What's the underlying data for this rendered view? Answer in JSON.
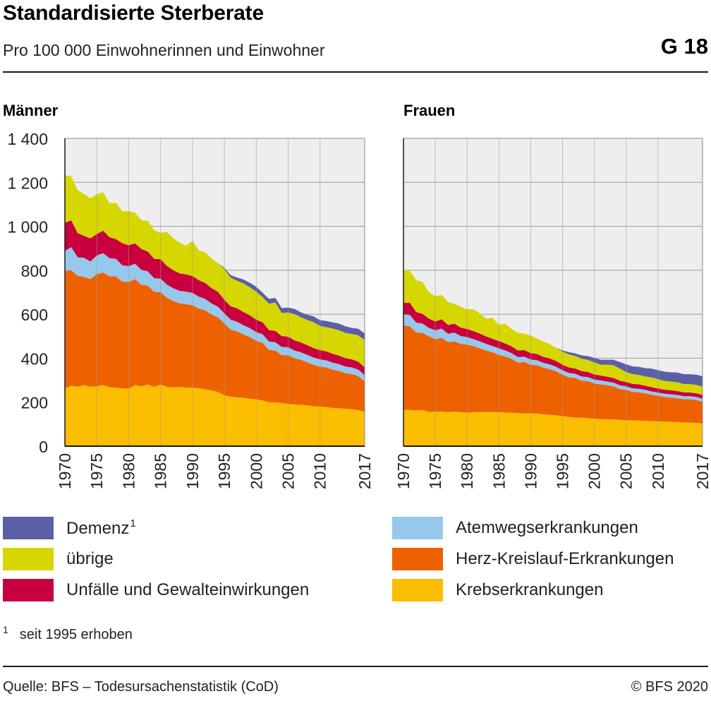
{
  "header": {
    "title": "Standardisierte Sterberate",
    "subtitle": "Pro 100 000 Einwohnerinnen und Einwohner",
    "graphic_number": "G 18"
  },
  "legend": {
    "items": [
      {
        "key": "demenz",
        "label": "Demenz",
        "superscript": "1",
        "color": "#5b5fa6"
      },
      {
        "key": "uebrige",
        "label": "übrige",
        "color": "#d6d600"
      },
      {
        "key": "unfaelle",
        "label": "Unfälle und Gewalteinwirkungen",
        "color": "#c8003f"
      },
      {
        "key": "atemweg",
        "label": "Atemwegserkrankungen",
        "color": "#96c8ec"
      },
      {
        "key": "herz",
        "label": "Herz-Kreislauf-Erkrankungen",
        "color": "#ee6100"
      },
      {
        "key": "krebs",
        "label": "Krebserkrankungen",
        "color": "#fbbe00"
      }
    ]
  },
  "footnote": {
    "marker": "1",
    "text": "seit 1995 erhoben"
  },
  "source": "Quelle: BFS – Todesursachenstatistik (CoD)",
  "copyright": "© BFS 2020",
  "chart_data": [
    {
      "type": "area",
      "title": "Männer",
      "stacked": true,
      "x": [
        1970,
        1971,
        1972,
        1973,
        1974,
        1975,
        1976,
        1977,
        1978,
        1979,
        1980,
        1981,
        1982,
        1983,
        1984,
        1985,
        1986,
        1987,
        1988,
        1989,
        1990,
        1991,
        1992,
        1993,
        1994,
        1995,
        1996,
        1997,
        1998,
        1999,
        2000,
        2001,
        2002,
        2003,
        2004,
        2005,
        2006,
        2007,
        2008,
        2009,
        2010,
        2011,
        2012,
        2013,
        2014,
        2015,
        2016,
        2017
      ],
      "x_ticks": [
        1970,
        1975,
        1980,
        1985,
        1990,
        1995,
        2000,
        2005,
        2010,
        2017
      ],
      "y_ticks": [
        0,
        200,
        400,
        600,
        800,
        1000,
        1200,
        1400
      ],
      "y_tick_labels": [
        "0",
        "200",
        "400",
        "600",
        "800",
        "1 000",
        "1 200",
        "1 400"
      ],
      "ylim": [
        0,
        1400
      ],
      "grid": true,
      "series": [
        {
          "key": "krebs",
          "values": [
            263,
            275,
            270,
            278,
            270,
            272,
            278,
            268,
            266,
            263,
            262,
            278,
            272,
            280,
            270,
            280,
            270,
            268,
            270,
            266,
            266,
            264,
            258,
            254,
            246,
            232,
            225,
            222,
            220,
            216,
            213,
            208,
            200,
            200,
            196,
            192,
            190,
            188,
            186,
            182,
            180,
            178,
            174,
            172,
            170,
            168,
            164,
            156
          ]
        },
        {
          "key": "herz",
          "values": [
            535,
            525,
            505,
            492,
            490,
            510,
            512,
            505,
            506,
            485,
            485,
            482,
            462,
            450,
            432,
            420,
            405,
            392,
            380,
            380,
            375,
            362,
            360,
            345,
            340,
            326,
            305,
            300,
            288,
            280,
            266,
            262,
            238,
            235,
            218,
            222,
            210,
            205,
            195,
            188,
            182,
            180,
            174,
            170,
            162,
            160,
            155,
            138
          ]
        },
        {
          "key": "atemweg",
          "values": [
            90,
            105,
            84,
            87,
            80,
            85,
            88,
            82,
            80,
            75,
            72,
            70,
            68,
            65,
            62,
            62,
            60,
            58,
            56,
            57,
            56,
            54,
            52,
            50,
            48,
            46,
            45,
            44,
            42,
            41,
            40,
            39,
            38,
            38,
            37,
            36,
            35,
            34,
            34,
            33,
            33,
            32,
            32,
            31,
            30,
            30,
            29,
            29
          ]
        },
        {
          "key": "unfaelle",
          "values": [
            128,
            122,
            110,
            100,
            105,
            98,
            102,
            95,
            90,
            100,
            95,
            92,
            95,
            90,
            88,
            88,
            85,
            82,
            80,
            78,
            77,
            75,
            72,
            70,
            68,
            62,
            61,
            61,
            60,
            58,
            56,
            54,
            52,
            51,
            50,
            48,
            46,
            45,
            44,
            43,
            42,
            41,
            40,
            39,
            38,
            37,
            36,
            35
          ]
        },
        {
          "key": "uebrige",
          "values": [
            217,
            200,
            195,
            190,
            182,
            180,
            175,
            155,
            165,
            145,
            155,
            140,
            130,
            140,
            130,
            120,
            155,
            145,
            140,
            130,
            160,
            135,
            140,
            135,
            130,
            140,
            130,
            125,
            130,
            128,
            128,
            115,
            120,
            130,
            105,
            110,
            120,
            115,
            115,
            118,
            110,
            110,
            115,
            115,
            115,
            115,
            120,
            125
          ]
        },
        {
          "key": "demenz",
          "values": [
            0,
            0,
            0,
            0,
            0,
            0,
            0,
            0,
            0,
            0,
            0,
            0,
            0,
            0,
            0,
            0,
            0,
            0,
            0,
            0,
            0,
            0,
            0,
            0,
            0,
            5,
            12,
            15,
            18,
            20,
            22,
            20,
            22,
            20,
            22,
            22,
            23,
            22,
            24,
            26,
            26,
            28,
            28,
            30,
            30,
            28,
            30,
            30
          ]
        }
      ]
    },
    {
      "type": "area",
      "title": "Frauen",
      "stacked": true,
      "x": [
        1970,
        1971,
        1972,
        1973,
        1974,
        1975,
        1976,
        1977,
        1978,
        1979,
        1980,
        1981,
        1982,
        1983,
        1984,
        1985,
        1986,
        1987,
        1988,
        1989,
        1990,
        1991,
        1992,
        1993,
        1994,
        1995,
        1996,
        1997,
        1998,
        1999,
        2000,
        2001,
        2002,
        2003,
        2004,
        2005,
        2006,
        2007,
        2008,
        2009,
        2010,
        2011,
        2012,
        2013,
        2014,
        2015,
        2016,
        2017
      ],
      "x_ticks": [
        1970,
        1975,
        1980,
        1985,
        1990,
        1995,
        2000,
        2005,
        2010,
        2017
      ],
      "y_ticks": [
        0,
        200,
        400,
        600,
        800,
        1000,
        1200,
        1400
      ],
      "ylim": [
        0,
        1400
      ],
      "grid": true,
      "series": [
        {
          "key": "krebs",
          "values": [
            165,
            165,
            162,
            165,
            155,
            157,
            158,
            155,
            157,
            155,
            152,
            155,
            155,
            155,
            155,
            155,
            153,
            152,
            150,
            148,
            150,
            148,
            145,
            143,
            140,
            137,
            133,
            130,
            130,
            127,
            125,
            123,
            122,
            122,
            120,
            118,
            117,
            117,
            115,
            114,
            113,
            112,
            111,
            110,
            108,
            107,
            106,
            104
          ]
        },
        {
          "key": "herz",
          "values": [
            385,
            380,
            355,
            350,
            345,
            330,
            335,
            318,
            320,
            310,
            310,
            300,
            290,
            280,
            272,
            260,
            255,
            245,
            230,
            235,
            220,
            220,
            212,
            207,
            200,
            188,
            180,
            180,
            168,
            168,
            160,
            158,
            155,
            150,
            140,
            138,
            130,
            128,
            125,
            120,
            116,
            112,
            110,
            108,
            106,
            106,
            104,
            98
          ]
        },
        {
          "key": "atemweg",
          "values": [
            50,
            52,
            45,
            43,
            38,
            40,
            42,
            38,
            40,
            36,
            34,
            32,
            32,
            30,
            28,
            30,
            27,
            26,
            25,
            24,
            24,
            23,
            22,
            22,
            21,
            20,
            20,
            19,
            19,
            19,
            18,
            18,
            17,
            17,
            17,
            16,
            16,
            16,
            16,
            15,
            15,
            15,
            15,
            15,
            14,
            14,
            14,
            14
          ]
        },
        {
          "key": "unfaelle",
          "values": [
            52,
            55,
            48,
            44,
            42,
            40,
            42,
            40,
            40,
            38,
            37,
            36,
            35,
            34,
            33,
            33,
            32,
            31,
            30,
            30,
            29,
            28,
            27,
            27,
            26,
            25,
            25,
            24,
            24,
            23,
            23,
            22,
            22,
            21,
            21,
            20,
            20,
            20,
            19,
            19,
            18,
            18,
            18,
            18,
            17,
            17,
            17,
            17
          ]
        },
        {
          "key": "uebrige",
          "values": [
            150,
            145,
            145,
            145,
            120,
            115,
            110,
            105,
            90,
            95,
            90,
            100,
            92,
            80,
            95,
            75,
            90,
            80,
            80,
            75,
            80,
            70,
            70,
            65,
            60,
            60,
            60,
            57,
            57,
            55,
            55,
            50,
            55,
            58,
            55,
            45,
            45,
            43,
            42,
            45,
            43,
            40,
            40,
            40,
            38,
            38,
            38,
            38
          ]
        },
        {
          "key": "demenz",
          "values": [
            0,
            0,
            0,
            0,
            0,
            0,
            0,
            0,
            0,
            0,
            0,
            0,
            0,
            0,
            0,
            0,
            0,
            0,
            0,
            0,
            0,
            0,
            0,
            0,
            0,
            5,
            10,
            12,
            15,
            18,
            20,
            22,
            22,
            25,
            30,
            35,
            35,
            37,
            38,
            40,
            40,
            42,
            42,
            44,
            45,
            45,
            46,
            47
          ]
        }
      ]
    }
  ]
}
